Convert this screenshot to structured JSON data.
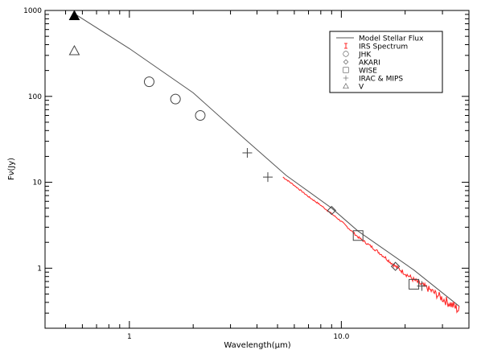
{
  "chart_data": {
    "type": "scatter",
    "xlabel": "Wavelength(μm)",
    "ylabel": "Fν(Jy)",
    "x_scale": "log",
    "y_scale": "log",
    "xlim": [
      0.4,
      40
    ],
    "ylim": [
      0.2,
      1000
    ],
    "x_ticks": [
      {
        "value": 1,
        "label": "1"
      },
      {
        "value": 10,
        "label": "10.0"
      }
    ],
    "y_ticks": [
      {
        "value": 1,
        "label": "1"
      },
      {
        "value": 10,
        "label": "10"
      },
      {
        "value": 100,
        "label": "100"
      },
      {
        "value": 1000,
        "label": "1000"
      }
    ],
    "grid": false,
    "legend_position": "top-right",
    "legend": [
      {
        "label": "Model Stellar Flux",
        "symbol": "line",
        "color": "#555555"
      },
      {
        "label": "IRS Spectrum",
        "symbol": "errorbar",
        "color": "#ff2a2a"
      },
      {
        "label": "JHK",
        "symbol": "circle",
        "color": "#444444"
      },
      {
        "label": "AKARI",
        "symbol": "diamond",
        "color": "#444444"
      },
      {
        "label": "WISE",
        "symbol": "square",
        "color": "#444444"
      },
      {
        "label": "IRAC & MIPS",
        "symbol": "plus",
        "color": "#444444"
      },
      {
        "label": "V",
        "symbol": "triangle",
        "color": "#444444"
      }
    ],
    "series": [
      {
        "name": "Model Stellar Flux",
        "kind": "line",
        "color": "#555555",
        "points": [
          [
            0.55,
            920
          ],
          [
            1.0,
            360
          ],
          [
            2.0,
            110
          ],
          [
            3.5,
            32
          ],
          [
            5.5,
            12
          ],
          [
            9.0,
            5.0
          ],
          [
            12.0,
            2.7
          ],
          [
            22.0,
            0.95
          ],
          [
            36.0,
            0.36
          ]
        ]
      },
      {
        "name": "IRS Spectrum",
        "kind": "spectrum",
        "color": "#ff2a2a",
        "points": [
          [
            5.3,
            11.5
          ],
          [
            6.0,
            9.2
          ],
          [
            7.0,
            6.8
          ],
          [
            8.0,
            5.4
          ],
          [
            9.0,
            4.3
          ],
          [
            10.0,
            3.5
          ],
          [
            12.0,
            2.3
          ],
          [
            14.0,
            1.75
          ],
          [
            16.0,
            1.35
          ],
          [
            18.0,
            1.05
          ],
          [
            20.0,
            0.87
          ],
          [
            22.0,
            0.73
          ],
          [
            25.0,
            0.6
          ],
          [
            28.0,
            0.5
          ],
          [
            31.0,
            0.42
          ],
          [
            34.0,
            0.36
          ],
          [
            36.0,
            0.32
          ]
        ]
      },
      {
        "name": "JHK",
        "kind": "circle",
        "points": [
          [
            1.24,
            148
          ],
          [
            1.65,
            93
          ],
          [
            2.16,
            60
          ]
        ]
      },
      {
        "name": "AKARI",
        "kind": "diamond",
        "points": [
          [
            9.0,
            4.7
          ],
          [
            18.0,
            1.05
          ]
        ]
      },
      {
        "name": "WISE",
        "kind": "square",
        "points": [
          [
            12.0,
            2.4
          ],
          [
            22.0,
            0.65
          ]
        ]
      },
      {
        "name": "IRAC & MIPS",
        "kind": "plus",
        "points": [
          [
            3.6,
            22
          ],
          [
            4.5,
            11.5
          ],
          [
            24.0,
            0.62
          ]
        ]
      },
      {
        "name": "V",
        "kind": "triangle",
        "points": [
          [
            0.55,
            340
          ]
        ]
      },
      {
        "name": "V (filled)",
        "kind": "triangle-filled",
        "points": [
          [
            0.55,
            870
          ]
        ]
      }
    ]
  }
}
